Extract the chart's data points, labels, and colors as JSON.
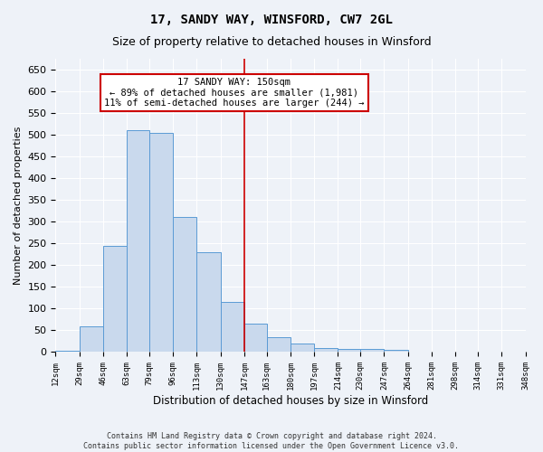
{
  "title": "17, SANDY WAY, WINSFORD, CW7 2GL",
  "subtitle": "Size of property relative to detached houses in Winsford",
  "xlabel": "Distribution of detached houses by size in Winsford",
  "ylabel": "Number of detached properties",
  "bin_labels": [
    "12sqm",
    "29sqm",
    "46sqm",
    "63sqm",
    "79sqm",
    "96sqm",
    "113sqm",
    "130sqm",
    "147sqm",
    "163sqm",
    "180sqm",
    "197sqm",
    "214sqm",
    "230sqm",
    "247sqm",
    "264sqm",
    "281sqm",
    "298sqm",
    "314sqm",
    "331sqm",
    "348sqm"
  ],
  "bar_values": [
    3,
    60,
    245,
    510,
    505,
    310,
    230,
    115,
    65,
    35,
    20,
    10,
    8,
    7,
    5,
    1,
    1,
    1,
    0,
    1
  ],
  "bar_color": "#c9d9ed",
  "bar_edge_color": "#5b9bd5",
  "vline_x_bin": 8,
  "vline_color": "#cc0000",
  "ylim": [
    0,
    675
  ],
  "yticks": [
    0,
    50,
    100,
    150,
    200,
    250,
    300,
    350,
    400,
    450,
    500,
    550,
    600,
    650
  ],
  "annotation_line1": "17 SANDY WAY: 150sqm",
  "annotation_line2": "← 89% of detached houses are smaller (1,981)",
  "annotation_line3": "11% of semi-detached houses are larger (244) →",
  "annotation_box_color": "#ffffff",
  "annotation_box_edge": "#cc0000",
  "footnote1": "Contains HM Land Registry data © Crown copyright and database right 2024.",
  "footnote2": "Contains public sector information licensed under the Open Government Licence v3.0.",
  "background_color": "#eef2f8",
  "grid_color": "#ffffff",
  "title_fontsize": 10,
  "subtitle_fontsize": 9,
  "ylabel_fontsize": 8,
  "xlabel_fontsize": 8.5,
  "ytick_fontsize": 8,
  "xtick_fontsize": 6.5
}
